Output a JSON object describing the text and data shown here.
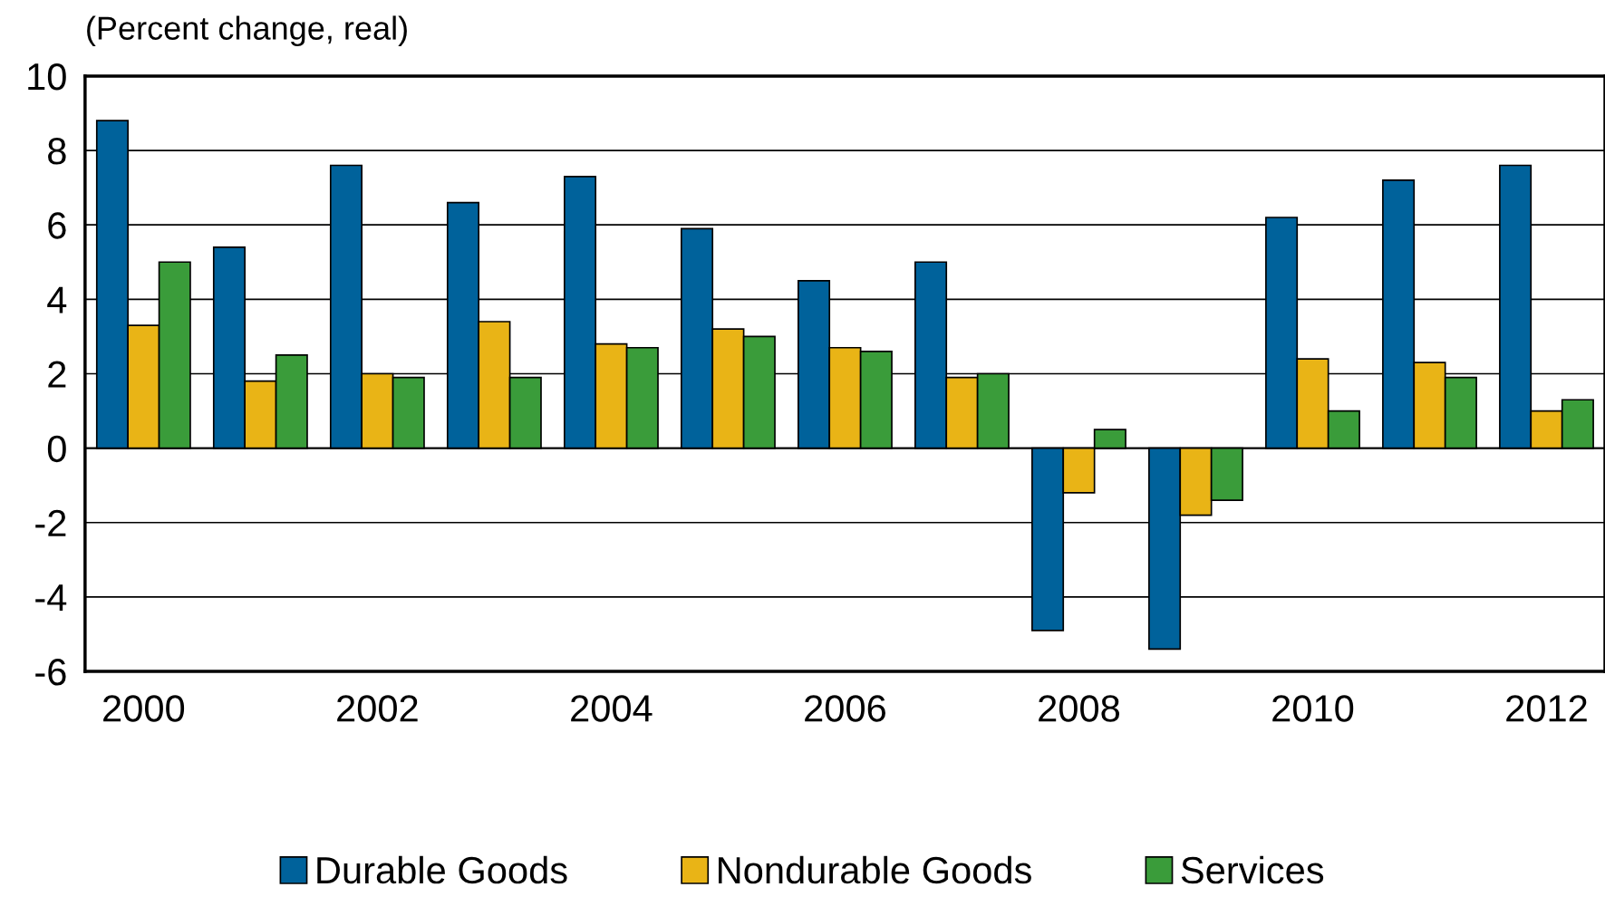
{
  "chart_data": {
    "type": "bar",
    "ylabel": "(Percent change, real)",
    "categories": [
      "2000",
      null,
      "2002",
      null,
      "2004",
      null,
      "2006",
      null,
      "2008",
      null,
      "2010",
      null,
      "2012"
    ],
    "series": [
      {
        "name": "Durable Goods",
        "color": "#00629b",
        "values": [
          8.8,
          5.4,
          7.6,
          6.6,
          7.3,
          5.9,
          4.5,
          5.0,
          -4.9,
          -5.4,
          6.2,
          7.2,
          7.6
        ]
      },
      {
        "name": "Nondurable Goods",
        "color": "#e9b416",
        "values": [
          3.3,
          1.8,
          2.0,
          3.4,
          2.8,
          3.2,
          2.7,
          1.9,
          -1.2,
          -1.8,
          2.4,
          2.3,
          1.0
        ]
      },
      {
        "name": "Services",
        "color": "#3a9c3a",
        "values": [
          5.0,
          2.5,
          1.9,
          1.9,
          2.7,
          3.0,
          2.6,
          2.0,
          0.5,
          -1.4,
          1.0,
          1.9,
          1.3
        ]
      }
    ],
    "ylim": [
      -6,
      10
    ],
    "yticks": [
      -6,
      -4,
      -2,
      0,
      2,
      4,
      6,
      8,
      10
    ],
    "grid": "y",
    "legend": "bottom"
  }
}
